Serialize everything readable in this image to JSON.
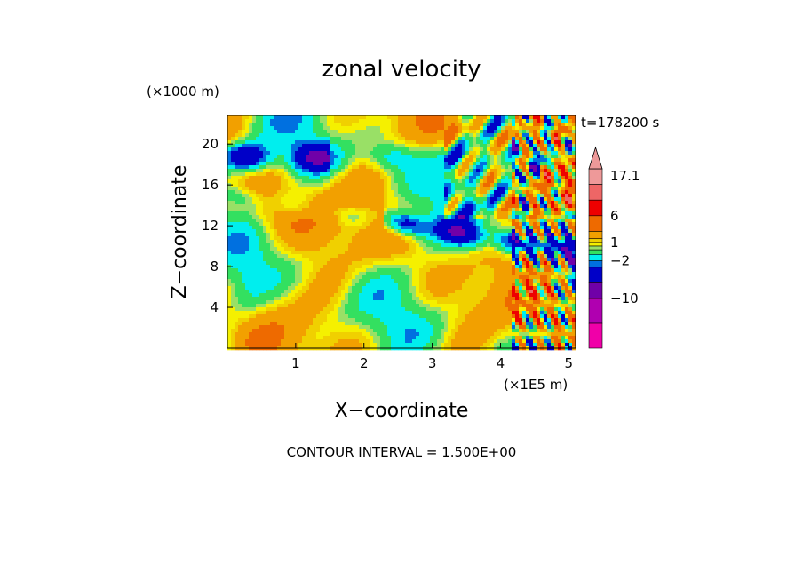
{
  "chart_data": {
    "type": "heatmap",
    "title": "zonal velocity",
    "xlabel": "X−coordinate",
    "ylabel": "Z−coordinate",
    "x_unit": "(×1E5 m)",
    "y_unit": "(×1000 m)",
    "time_label": "t=178200 s",
    "xlim": [
      0,
      5.1
    ],
    "ylim": [
      0,
      22.8
    ],
    "x_ticks": [
      {
        "value": 1,
        "label": "1"
      },
      {
        "value": 2,
        "label": "2"
      },
      {
        "value": 3,
        "label": "3"
      },
      {
        "value": 4,
        "label": "4"
      },
      {
        "value": 5,
        "label": "5"
      }
    ],
    "y_ticks": [
      {
        "value": 4,
        "label": "4"
      },
      {
        "value": 8,
        "label": "8"
      },
      {
        "value": 12,
        "label": "12"
      },
      {
        "value": 16,
        "label": "16"
      },
      {
        "value": 20,
        "label": "20"
      }
    ],
    "colorbar": {
      "max_label": "17.1",
      "labels": [
        {
          "value": 17.1,
          "label": "17.1"
        },
        {
          "value": 6,
          "label": "6"
        },
        {
          "value": 1,
          "label": "1"
        },
        {
          "value": -2,
          "label": "−2"
        },
        {
          "value": -10,
          "label": "−10"
        }
      ],
      "levels": [
        {
          "lo": 13.5,
          "hi": 17.1,
          "color": "#ee9999"
        },
        {
          "lo": 9,
          "hi": 13.5,
          "color": "#ee6666"
        },
        {
          "lo": 6,
          "hi": 9,
          "color": "#ee0000"
        },
        {
          "lo": 3,
          "hi": 6,
          "color": "#ee6a00"
        },
        {
          "lo": 1.5,
          "hi": 3,
          "color": "#f2a000"
        },
        {
          "lo": 1,
          "hi": 1.5,
          "color": "#f0d000"
        },
        {
          "lo": 0.5,
          "hi": 1,
          "color": "#f5f000"
        },
        {
          "lo": 0,
          "hi": 0.5,
          "color": "#99e066"
        },
        {
          "lo": -1,
          "hi": 0,
          "color": "#33e060"
        },
        {
          "lo": -2,
          "hi": -1,
          "color": "#00eeee"
        },
        {
          "lo": -3,
          "hi": -2,
          "color": "#0070e0"
        },
        {
          "lo": -6,
          "hi": -3,
          "color": "#0000c8"
        },
        {
          "lo": -10,
          "hi": -6,
          "color": "#7000a8"
        },
        {
          "lo": -14,
          "hi": -10,
          "color": "#b000b0"
        },
        {
          "lo": -18,
          "hi": -14,
          "color": "#f000a8"
        }
      ]
    },
    "contour_interval": "CONTOUR INTERVAL = 1.500E+00"
  }
}
